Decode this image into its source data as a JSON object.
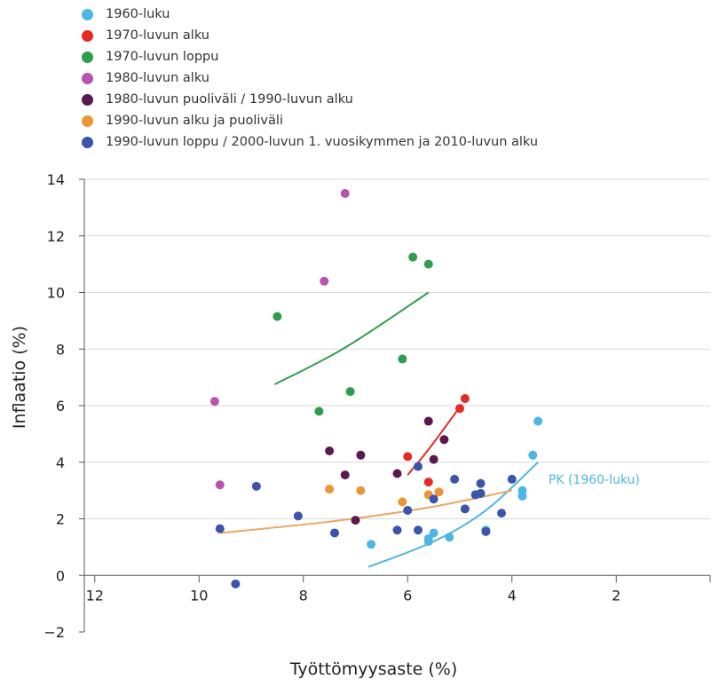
{
  "chart_data": {
    "type": "scatter",
    "xlabel": "Työttömyysaste (%)",
    "ylabel": "Inflaatio (%)",
    "x_reversed": true,
    "xlim": [
      12.2,
      0.2
    ],
    "ylim": [
      -2,
      14
    ],
    "x_ticks": [
      "12",
      "10",
      "8",
      "6",
      "4",
      "2"
    ],
    "y_ticks": [
      "14",
      "12",
      "10",
      "8",
      "6",
      "4",
      "2",
      "0",
      "−2"
    ],
    "x_tick_values": [
      12,
      10,
      8,
      6,
      4,
      2
    ],
    "y_tick_values": [
      14,
      12,
      10,
      8,
      6,
      4,
      2,
      0,
      -2
    ],
    "grid": "horizontal",
    "legend": "top-left",
    "series": [
      {
        "name": "1960-luku",
        "color": "#4db6e2",
        "points": [
          [
            6.7,
            1.1
          ],
          [
            5.6,
            1.2
          ],
          [
            5.6,
            1.3
          ],
          [
            5.5,
            1.5
          ],
          [
            5.2,
            1.35
          ],
          [
            4.5,
            1.6
          ],
          [
            3.8,
            2.8
          ],
          [
            3.8,
            3.0
          ],
          [
            3.6,
            4.25
          ],
          [
            3.5,
            5.45
          ]
        ]
      },
      {
        "name": "1970-luvun alku",
        "color": "#e52a25",
        "points": [
          [
            6.0,
            4.2
          ],
          [
            5.6,
            3.3
          ],
          [
            5.0,
            5.9
          ],
          [
            4.9,
            6.25
          ]
        ]
      },
      {
        "name": "1970-luvun loppu",
        "color": "#2e9e4a",
        "points": [
          [
            8.5,
            9.15
          ],
          [
            7.7,
            5.8
          ],
          [
            7.1,
            6.5
          ],
          [
            6.1,
            7.65
          ],
          [
            5.9,
            11.25
          ],
          [
            5.6,
            11.0
          ]
        ]
      },
      {
        "name": "1980-luvun alku",
        "color": "#b853b0",
        "points": [
          [
            9.7,
            6.15
          ],
          [
            9.6,
            3.2
          ],
          [
            7.6,
            10.4
          ],
          [
            7.2,
            13.5
          ]
        ]
      },
      {
        "name": "1980-luvun puoliväli / 1990-luvun alku",
        "color": "#5a1a4f",
        "points": [
          [
            7.5,
            4.4
          ],
          [
            7.2,
            3.55
          ],
          [
            7.0,
            1.95
          ],
          [
            6.9,
            4.25
          ],
          [
            6.2,
            3.6
          ],
          [
            5.6,
            5.45
          ],
          [
            5.5,
            4.1
          ],
          [
            5.3,
            4.8
          ]
        ]
      },
      {
        "name": "1990-luvun alku ja puoliväli",
        "color": "#eb9634",
        "points": [
          [
            7.5,
            3.05
          ],
          [
            6.9,
            3.0
          ],
          [
            6.1,
            2.6
          ],
          [
            5.6,
            2.85
          ],
          [
            5.4,
            2.95
          ]
        ]
      },
      {
        "name": "1990-luvun loppu / 2000-luvun 1. vuosikymmen ja 2010-luvun alku",
        "color": "#3d55a8",
        "points": [
          [
            9.6,
            1.65
          ],
          [
            9.3,
            -0.3
          ],
          [
            8.9,
            3.15
          ],
          [
            8.1,
            2.1
          ],
          [
            7.4,
            1.5
          ],
          [
            6.2,
            1.6
          ],
          [
            6.0,
            2.3
          ],
          [
            5.8,
            1.6
          ],
          [
            5.8,
            3.85
          ],
          [
            5.5,
            2.7
          ],
          [
            5.1,
            3.4
          ],
          [
            4.9,
            2.35
          ],
          [
            4.7,
            2.85
          ],
          [
            4.6,
            2.9
          ],
          [
            4.6,
            3.25
          ],
          [
            4.5,
            1.55
          ],
          [
            4.2,
            2.2
          ],
          [
            4.0,
            3.4
          ]
        ]
      }
    ],
    "curves": [
      {
        "series": "1970-luvun loppu",
        "color": "#2e9e4a",
        "points": [
          [
            8.55,
            6.75
          ],
          [
            7.2,
            8.05
          ],
          [
            5.6,
            10.0
          ]
        ]
      },
      {
        "series": "1970-luvun alku",
        "color": "#e52a25",
        "points": [
          [
            6.0,
            3.55
          ],
          [
            5.6,
            4.45
          ],
          [
            5.0,
            5.95
          ]
        ]
      },
      {
        "series": "1960-luku",
        "color": "#4db6e2",
        "points": [
          [
            6.75,
            0.3
          ],
          [
            5.5,
            1.2
          ],
          [
            4.5,
            2.3
          ],
          [
            3.5,
            4.0
          ]
        ]
      },
      {
        "series": "1990-luvun alku ja puoliväli",
        "color": "#eba660",
        "points": [
          [
            9.6,
            1.5
          ],
          [
            7.5,
            1.9
          ],
          [
            5.6,
            2.4
          ],
          [
            4.0,
            3.0
          ]
        ]
      }
    ],
    "annotations": [
      {
        "text": "PK (1960-luku)",
        "color": "#4db6e2",
        "x": 3.3,
        "y": 3.4
      }
    ]
  }
}
